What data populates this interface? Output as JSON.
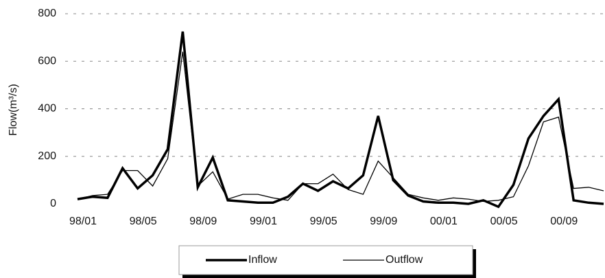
{
  "chart_data": {
    "type": "line",
    "y_label": "Flow(m³/s)",
    "categories": [
      "98/01",
      null,
      null,
      null,
      "98/05",
      null,
      null,
      null,
      "98/09",
      null,
      null,
      null,
      "99/01",
      null,
      null,
      null,
      "99/05",
      null,
      null,
      null,
      "99/09",
      null,
      null,
      null,
      "00/01",
      null,
      null,
      null,
      "00/05",
      null,
      null,
      null,
      "00/09",
      null,
      null,
      null
    ],
    "series": [
      {
        "name": "Inflow",
        "color": "#000000",
        "line_width": 3.5,
        "values": [
          20,
          30,
          25,
          150,
          65,
          120,
          230,
          725,
          70,
          195,
          15,
          10,
          5,
          5,
          30,
          85,
          55,
          95,
          65,
          120,
          370,
          100,
          35,
          10,
          5,
          5,
          0,
          15,
          -12,
          80,
          275,
          370,
          440,
          15,
          5,
          0
        ]
      },
      {
        "name": "Outflow",
        "color": "#000000",
        "line_width": 1.3,
        "values": [
          20,
          35,
          40,
          140,
          140,
          75,
          190,
          640,
          75,
          135,
          20,
          40,
          40,
          25,
          15,
          85,
          85,
          125,
          60,
          40,
          180,
          110,
          40,
          25,
          15,
          25,
          20,
          10,
          15,
          30,
          160,
          345,
          365,
          65,
          70,
          55
        ]
      }
    ],
    "ylim": [
      0,
      800
    ],
    "yticks": [
      0,
      200,
      400,
      600,
      800
    ],
    "grid": true
  }
}
